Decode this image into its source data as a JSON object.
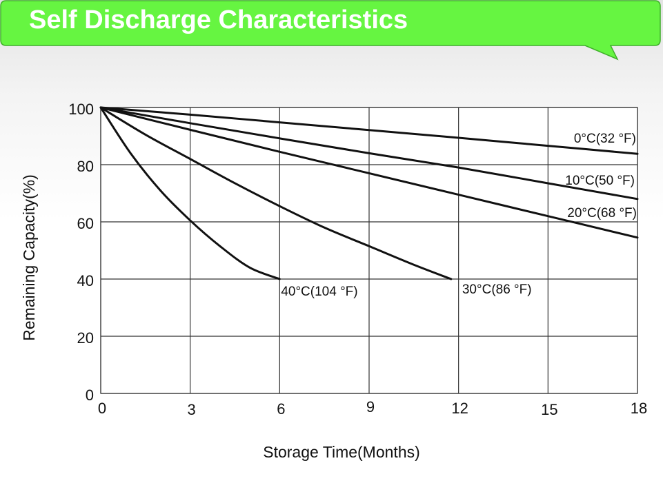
{
  "header": {
    "title": "Self Discharge Characteristics",
    "accent_color": "#66f541",
    "border_color": "#3fae2a"
  },
  "chart_data": {
    "type": "line",
    "title": "",
    "xlabel": "Storage Time(Months)",
    "ylabel": "Remaining Capacity(%)",
    "xlim": [
      0,
      18
    ],
    "ylim": [
      0,
      100
    ],
    "xticks": [
      0,
      3,
      6,
      9,
      12,
      15,
      18
    ],
    "yticks": [
      0,
      20,
      40,
      60,
      80,
      100
    ],
    "grid": true,
    "line_color": "#111111",
    "series": [
      {
        "name": "0°C(32 °F)",
        "x": [
          0,
          3,
          6,
          9,
          12,
          15,
          18
        ],
        "y": [
          100,
          97.5,
          94.8,
          92.1,
          89.4,
          86.6,
          83.8
        ]
      },
      {
        "name": "10°C(50 °F)",
        "x": [
          0,
          3,
          6,
          9,
          12,
          15,
          18
        ],
        "y": [
          100,
          94.5,
          89.2,
          84,
          79,
          73.5,
          68
        ]
      },
      {
        "name": "20°C(68 °F)",
        "x": [
          0,
          3,
          6,
          9,
          12,
          15,
          18
        ],
        "y": [
          100,
          92.2,
          84.5,
          77,
          69.5,
          62,
          54.5
        ]
      },
      {
        "name": "30°C(86 °F)",
        "x": [
          0,
          1.5,
          3,
          4.5,
          6,
          7.5,
          9,
          10.5,
          11.75
        ],
        "y": [
          100,
          90.5,
          82,
          73.5,
          65.5,
          58,
          51.5,
          45,
          40
        ]
      },
      {
        "name": "40°C(104 °F)",
        "x": [
          0,
          1,
          2,
          3,
          4,
          5,
          6
        ],
        "y": [
          100,
          84,
          71,
          60.5,
          51.5,
          44,
          40
        ]
      }
    ]
  }
}
